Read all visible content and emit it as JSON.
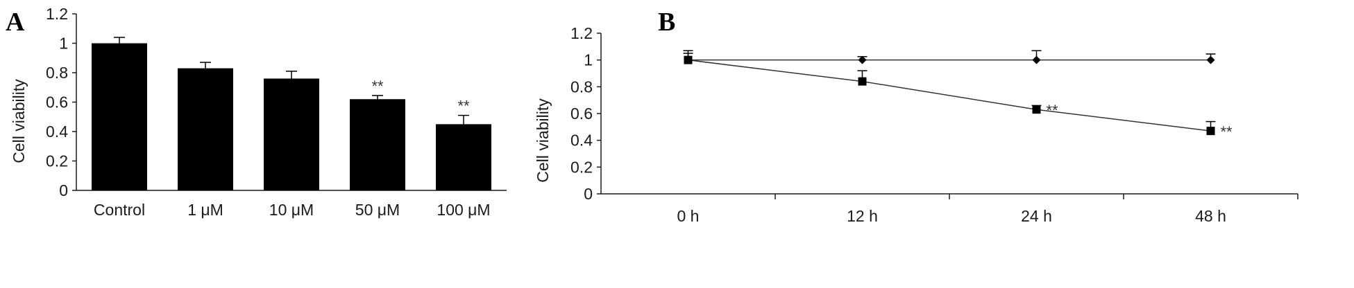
{
  "chart_data": [
    {
      "panel": "A",
      "type": "bar",
      "ylabel": "Cell viability",
      "xlabel": "",
      "ylim": [
        0,
        1.2
      ],
      "yticks": [
        "0",
        "0.2",
        "0.4",
        "0.6",
        "0.8",
        "1",
        "1.2"
      ],
      "categories": [
        "Control",
        "1 μM",
        "10 μM",
        "50 μM",
        "100 μM"
      ],
      "values": [
        1.0,
        0.83,
        0.76,
        0.62,
        0.45
      ],
      "errors": [
        0.04,
        0.04,
        0.05,
        0.025,
        0.06
      ],
      "annotations": [
        "",
        "",
        "",
        "**",
        "**"
      ],
      "grid": false,
      "bar_color": "#000000"
    },
    {
      "panel": "B",
      "type": "line",
      "ylabel": "Cell viability",
      "xlabel": "",
      "ylim": [
        0,
        1.2
      ],
      "yticks": [
        "0",
        "0.2",
        "0.4",
        "0.6",
        "0.8",
        "1",
        "1.2"
      ],
      "categories": [
        "0 h",
        "12 h",
        "24 h",
        "48 h"
      ],
      "grid": false,
      "series": [
        {
          "marker": "diamond",
          "values": [
            1.0,
            1.0,
            1.0,
            1.0
          ],
          "errors": [
            0.07,
            0.025,
            0.07,
            0.045
          ],
          "annotations": [
            "",
            "",
            "",
            ""
          ]
        },
        {
          "marker": "square",
          "values": [
            1.0,
            0.84,
            0.63,
            0.47
          ],
          "errors": [
            0.05,
            0.08,
            0.03,
            0.07
          ],
          "annotations": [
            "",
            "",
            "**",
            "**"
          ]
        }
      ]
    }
  ]
}
